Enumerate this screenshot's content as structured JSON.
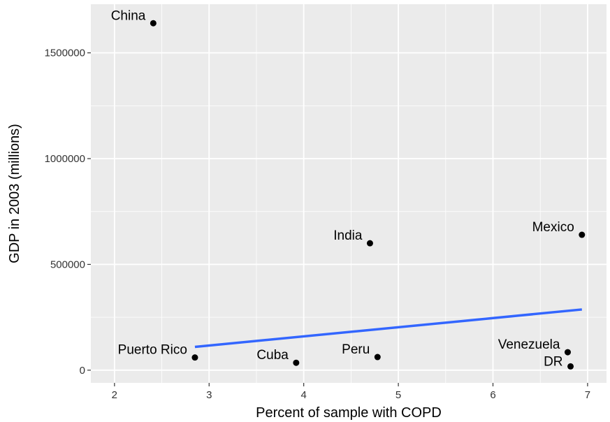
{
  "chart_data": {
    "type": "scatter",
    "xlabel": "Percent of sample with COPD",
    "ylabel": "GDP in 2003 (millions)",
    "xlim": [
      1.75,
      7.2
    ],
    "ylim": [
      -60000,
      1730000
    ],
    "x_ticks": [
      2,
      3,
      4,
      5,
      6,
      7
    ],
    "y_ticks": [
      0,
      500000,
      1000000,
      1500000
    ],
    "x_tick_labels": [
      "2",
      "3",
      "4",
      "5",
      "6",
      "7"
    ],
    "y_tick_labels": [
      "0",
      "500000",
      "1000000",
      "1500000"
    ],
    "grid": true,
    "background": "#ebebeb",
    "grid_color": "#ffffff",
    "point_color": "#000000",
    "points": [
      {
        "label": "China",
        "x": 2.41,
        "y": 1640000
      },
      {
        "label": "Puerto Rico",
        "x": 2.85,
        "y": 60000
      },
      {
        "label": "Cuba",
        "x": 3.92,
        "y": 35000
      },
      {
        "label": "India",
        "x": 4.7,
        "y": 600000
      },
      {
        "label": "Peru",
        "x": 4.78,
        "y": 62000
      },
      {
        "label": "Mexico",
        "x": 6.94,
        "y": 640000
      },
      {
        "label": "Venezuela",
        "x": 6.79,
        "y": 85000
      },
      {
        "label": "DR",
        "x": 6.82,
        "y": 18000
      }
    ],
    "trend_line": {
      "color": "#3366ff",
      "x": [
        2.85,
        6.94
      ],
      "y": [
        110000,
        287000
      ]
    }
  }
}
